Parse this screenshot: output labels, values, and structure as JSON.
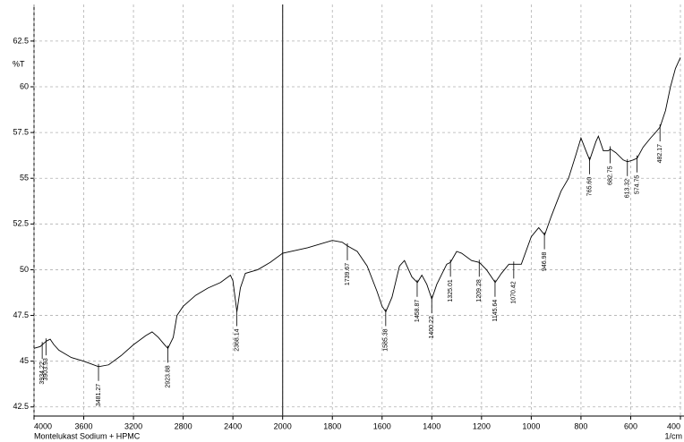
{
  "chart_data": {
    "type": "line",
    "title": "Montelukast Sodium + HPMC",
    "x_label": "1/cm",
    "y_label": "%T",
    "xlim": [
      4000,
      400
    ],
    "xticks": [
      4000,
      3600,
      3200,
      2800,
      2400,
      2000,
      1800,
      1600,
      1400,
      1200,
      1000,
      800,
      600,
      400
    ],
    "ylim": [
      42,
      64.5
    ],
    "yticks": [
      42.5,
      45,
      47.5,
      50,
      52.5,
      55,
      57.5,
      60,
      62.5
    ],
    "grid": true,
    "cursor_x": 2000,
    "series": [
      {
        "name": "Montelukast Sodium + HPMC",
        "color": "#000000",
        "x": [
          4000,
          3950,
          3934,
          3900,
          3870,
          3840,
          3800,
          3700,
          3600,
          3481,
          3400,
          3300,
          3200,
          3100,
          3050,
          3000,
          2950,
          2923,
          2880,
          2850,
          2800,
          2700,
          2600,
          2500,
          2420,
          2400,
          2368,
          2340,
          2300,
          2200,
          2100,
          2000,
          1900,
          1800,
          1760,
          1739,
          1700,
          1660,
          1620,
          1600,
          1585,
          1560,
          1530,
          1510,
          1480,
          1458,
          1440,
          1420,
          1400,
          1380,
          1340,
          1325,
          1300,
          1280,
          1240,
          1209,
          1180,
          1145,
          1120,
          1090,
          1070,
          1040,
          1000,
          970,
          946,
          920,
          900,
          880,
          850,
          820,
          800,
          780,
          765,
          740,
          730,
          710,
          690,
          682,
          660,
          630,
          613,
          590,
          574,
          550,
          520,
          500,
          482,
          460,
          440,
          420,
          400
        ],
        "values": [
          45.7,
          45.8,
          45.9,
          46.1,
          46.2,
          45.9,
          45.6,
          45.2,
          45.0,
          44.7,
          44.8,
          45.3,
          45.9,
          46.4,
          46.6,
          46.3,
          45.9,
          45.7,
          46.3,
          47.5,
          48.0,
          48.6,
          49.0,
          49.3,
          49.7,
          49.4,
          47.7,
          49.0,
          49.8,
          50.0,
          50.4,
          50.9,
          51.2,
          51.6,
          51.5,
          51.3,
          51.0,
          50.2,
          48.8,
          48.0,
          47.7,
          48.5,
          50.2,
          50.5,
          49.6,
          49.3,
          49.7,
          49.2,
          48.4,
          49.2,
          50.3,
          50.4,
          51.0,
          50.9,
          50.5,
          50.4,
          50.0,
          49.3,
          49.8,
          50.3,
          50.3,
          50.3,
          51.8,
          52.3,
          51.9,
          52.9,
          53.6,
          54.3,
          55.0,
          56.3,
          57.2,
          56.5,
          56.0,
          57.0,
          57.3,
          56.5,
          56.5,
          56.6,
          56.4,
          56.0,
          55.9,
          56.0,
          56.1,
          56.7,
          57.2,
          57.5,
          57.8,
          58.7,
          60.0,
          61.0,
          61.6
        ]
      }
    ],
    "peaks": [
      {
        "x": 3934.22,
        "label": "3934.22",
        "y": 45.9
      },
      {
        "x": 3903.93,
        "label": "3903.93",
        "y": 46.1
      },
      {
        "x": 3481.27,
        "label": "3481.27",
        "y": 44.7
      },
      {
        "x": 2923.88,
        "label": "2923.88",
        "y": 45.7
      },
      {
        "x": 2368.14,
        "label": "2368.14",
        "y": 47.7
      },
      {
        "x": 1739.67,
        "label": "1739.67",
        "y": 51.3
      },
      {
        "x": 1585.38,
        "label": "1585.38",
        "y": 47.7
      },
      {
        "x": 1458.87,
        "label": "1458.87",
        "y": 49.3
      },
      {
        "x": 1400.22,
        "label": "1400.22",
        "y": 48.4
      },
      {
        "x": 1325.01,
        "label": "1325.01",
        "y": 50.4
      },
      {
        "x": 1209.28,
        "label": "1209.28",
        "y": 50.4
      },
      {
        "x": 1145.64,
        "label": "1145.64",
        "y": 49.3
      },
      {
        "x": 1070.42,
        "label": "1070.42",
        "y": 50.3
      },
      {
        "x": 946.98,
        "label": "946.98",
        "y": 51.9
      },
      {
        "x": 765.6,
        "label": "765.60",
        "y": 56.0
      },
      {
        "x": 682.75,
        "label": "682.75",
        "y": 56.6
      },
      {
        "x": 613.32,
        "label": "613.32",
        "y": 55.9
      },
      {
        "x": 574.75,
        "label": "574.75",
        "y": 56.1
      },
      {
        "x": 482.17,
        "label": "482.17",
        "y": 57.8
      }
    ]
  }
}
